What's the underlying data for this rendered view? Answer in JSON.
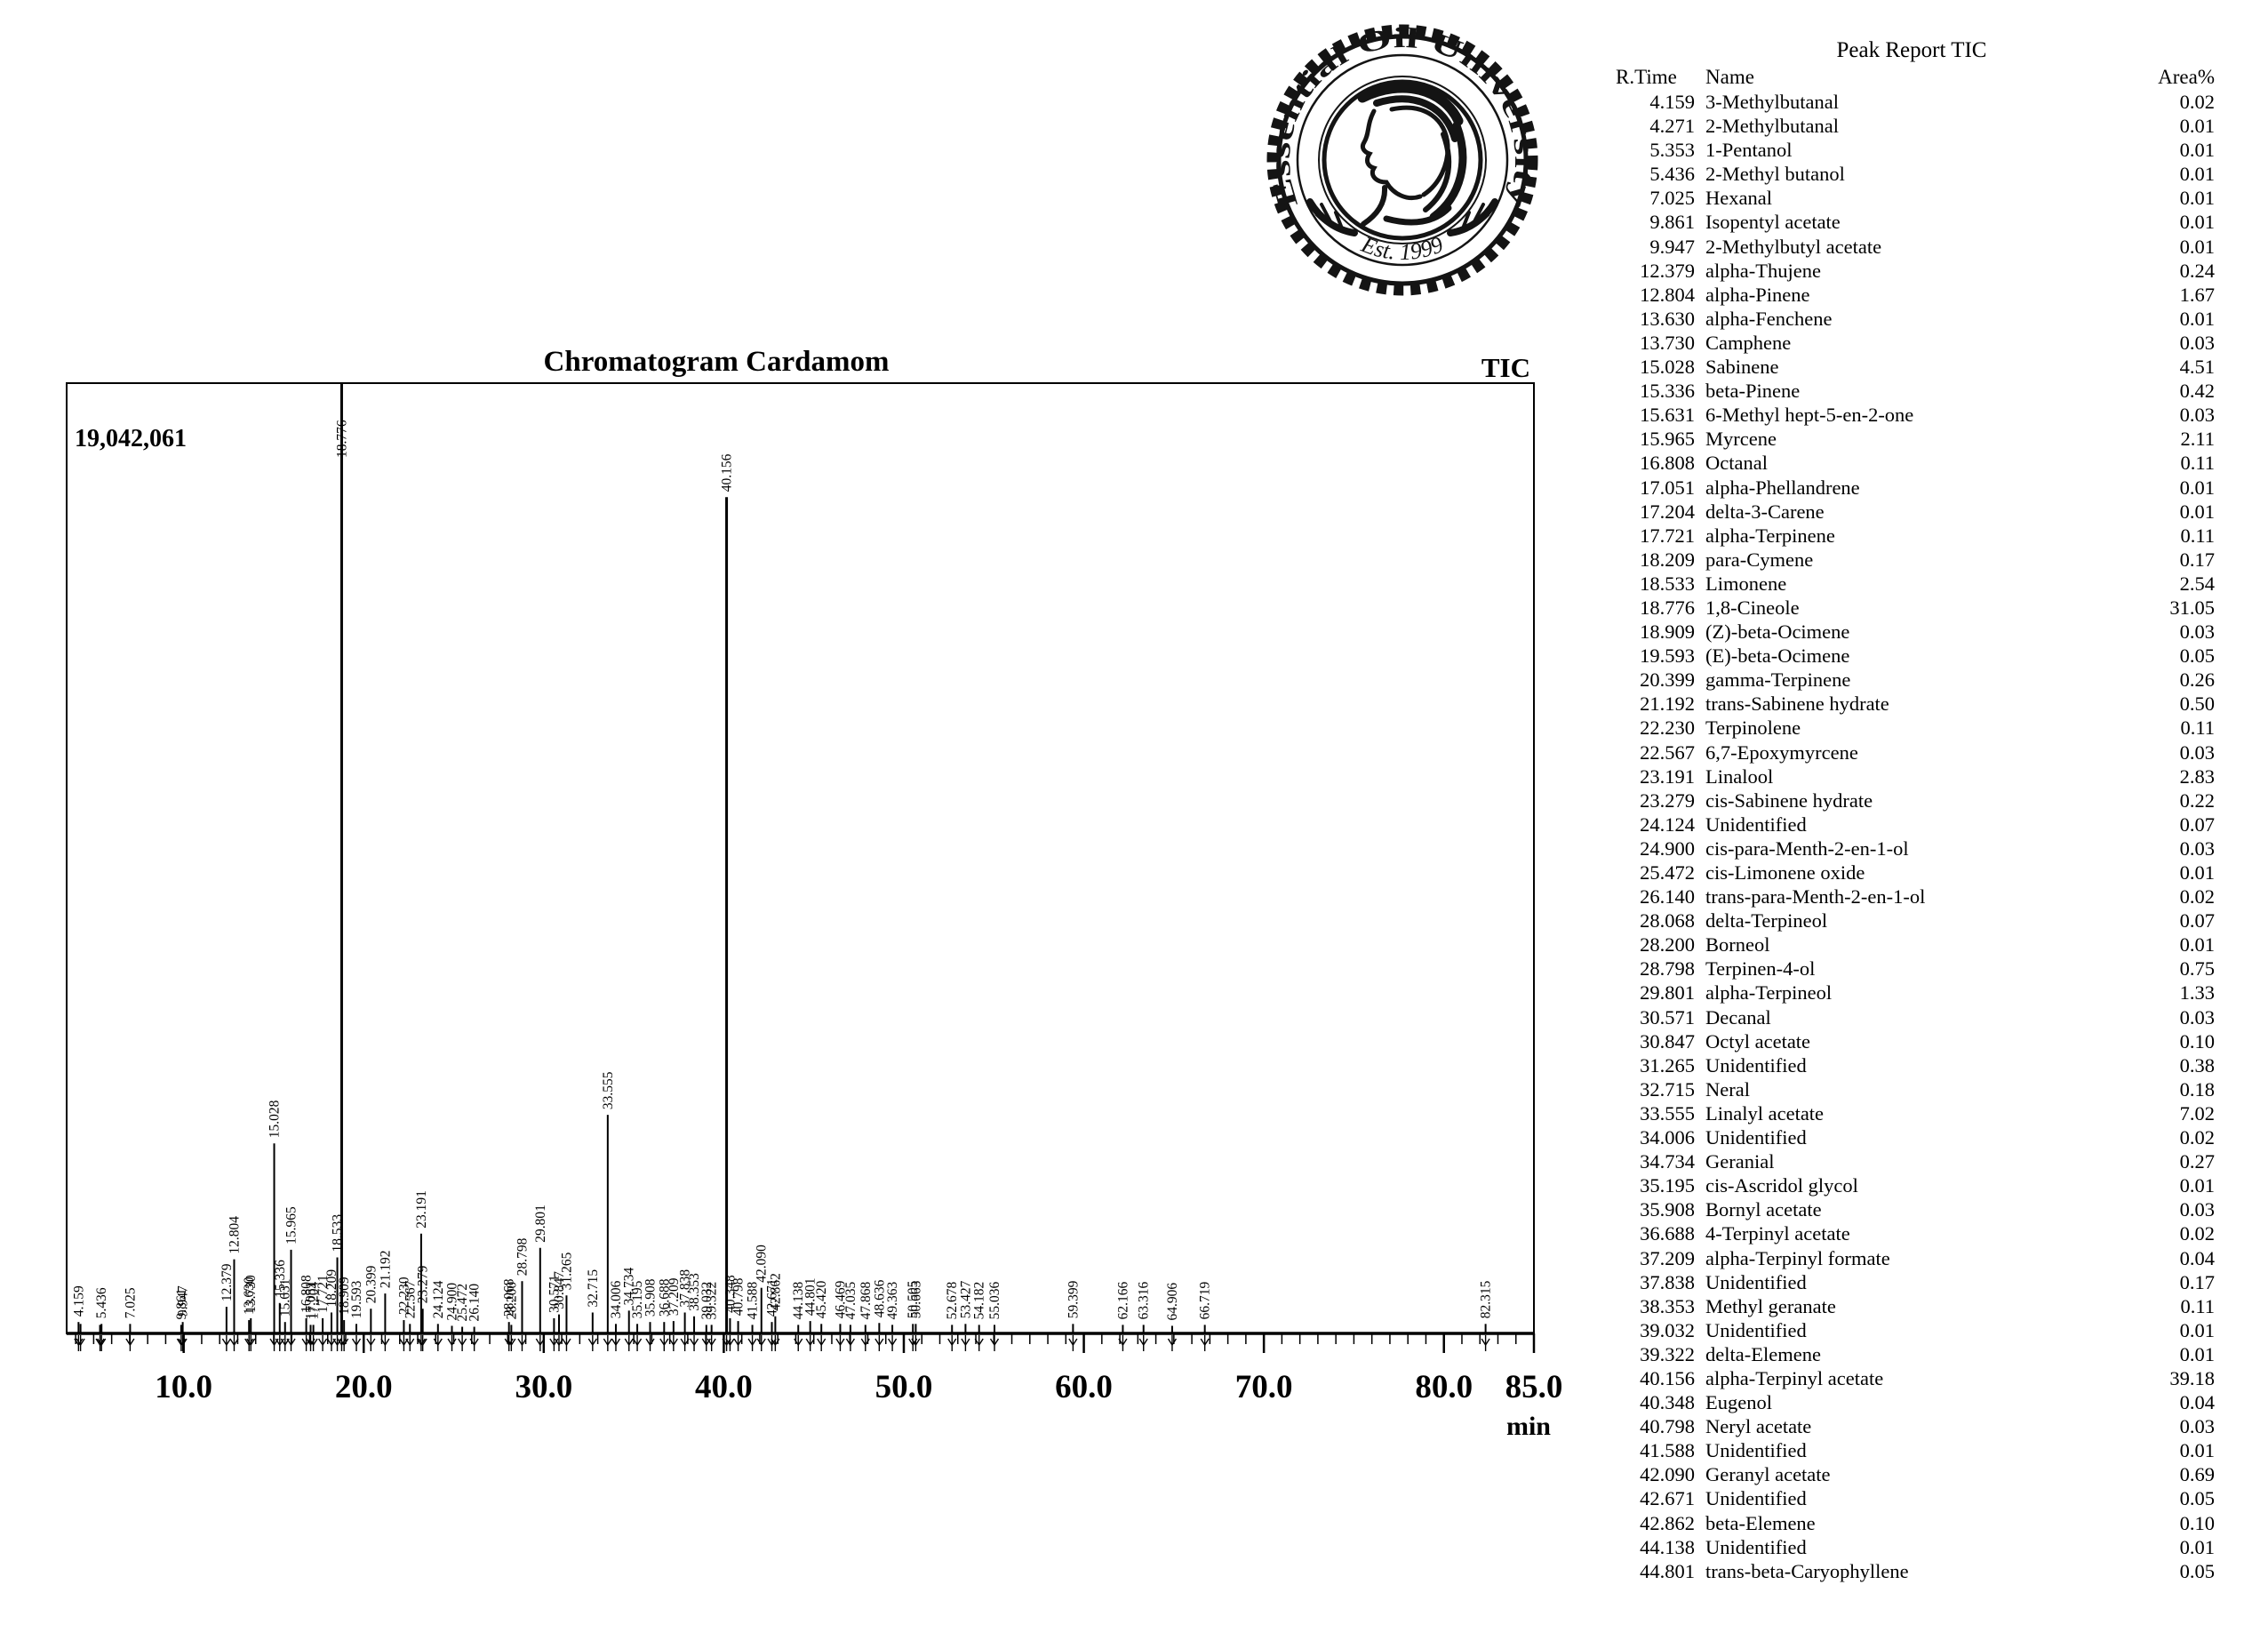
{
  "logo": {
    "top_text": "Essential Oil University",
    "bottom_text": "Est. 1999"
  },
  "chart_data": {
    "type": "line",
    "title": "Chromatogram Cardamom",
    "detector_label": "TIC",
    "y_max_intensity_label": "19,042,061",
    "xlabel": "min",
    "x_range": [
      3.5,
      85
    ],
    "x_major_ticks": [
      10,
      20,
      30,
      40,
      50,
      60,
      70,
      80,
      85
    ],
    "x_major_tick_labels": [
      "10.0",
      "20.0",
      "30.0",
      "40.0",
      "50.0",
      "60.0",
      "70.0",
      "80.0",
      "85.0"
    ],
    "grid": false,
    "peak_height_unit": "percent_of_plot_height",
    "peaks": [
      [
        4.159,
        1.2,
        1
      ],
      [
        4.271,
        1.0,
        0
      ],
      [
        5.353,
        0.9,
        0
      ],
      [
        5.436,
        1.0,
        1
      ],
      [
        7.025,
        1.0,
        1
      ],
      [
        9.861,
        0.9,
        1
      ],
      [
        9.947,
        1.2,
        1
      ],
      [
        12.379,
        2.8,
        1
      ],
      [
        12.804,
        7.8,
        1
      ],
      [
        13.63,
        1.4,
        1
      ],
      [
        13.73,
        1.6,
        1
      ],
      [
        15.028,
        20,
        1
      ],
      [
        15.336,
        3.2,
        1
      ],
      [
        15.631,
        1.2,
        1
      ],
      [
        15.965,
        8.8,
        1
      ],
      [
        16.808,
        1.6,
        1
      ],
      [
        17.051,
        0.9,
        1
      ],
      [
        17.204,
        0.9,
        1
      ],
      [
        17.721,
        1.6,
        1
      ],
      [
        18.209,
        2.2,
        1
      ],
      [
        18.533,
        8.0,
        1
      ],
      [
        18.776,
        100,
        1
      ],
      [
        18.909,
        1.4,
        1
      ],
      [
        19.593,
        1.0,
        1
      ],
      [
        20.399,
        2.6,
        1
      ],
      [
        21.192,
        4.2,
        1
      ],
      [
        22.23,
        1.4,
        1
      ],
      [
        22.567,
        1.0,
        1
      ],
      [
        23.191,
        10.5,
        1
      ],
      [
        23.279,
        2.6,
        1
      ],
      [
        24.124,
        1.0,
        1
      ],
      [
        24.9,
        0.8,
        1
      ],
      [
        25.472,
        0.7,
        1
      ],
      [
        26.14,
        0.7,
        1
      ],
      [
        28.068,
        1.2,
        1
      ],
      [
        28.2,
        0.9,
        1
      ],
      [
        28.798,
        5.5,
        1
      ],
      [
        29.801,
        9.0,
        1
      ],
      [
        30.571,
        1.6,
        1
      ],
      [
        30.847,
        2.0,
        1
      ],
      [
        31.265,
        4.0,
        1
      ],
      [
        32.715,
        2.2,
        1
      ],
      [
        33.555,
        23,
        1
      ],
      [
        34.006,
        1.0,
        1
      ],
      [
        34.734,
        2.4,
        1
      ],
      [
        35.195,
        1.0,
        1
      ],
      [
        35.908,
        1.2,
        1
      ],
      [
        36.688,
        1.2,
        1
      ],
      [
        37.209,
        1.3,
        1
      ],
      [
        37.838,
        2.2,
        1
      ],
      [
        38.353,
        1.8,
        1
      ],
      [
        39.032,
        0.9,
        1
      ],
      [
        39.322,
        0.9,
        1
      ],
      [
        40.156,
        88,
        1
      ],
      [
        40.348,
        1.6,
        1
      ],
      [
        40.798,
        1.3,
        1
      ],
      [
        41.588,
        0.9,
        1
      ],
      [
        42.09,
        4.8,
        1
      ],
      [
        42.671,
        1.2,
        1
      ],
      [
        42.862,
        1.8,
        1
      ],
      [
        44.138,
        0.9,
        1
      ],
      [
        44.801,
        1.3,
        1
      ],
      [
        45.42,
        1.0,
        1
      ],
      [
        46.469,
        1.0,
        1
      ],
      [
        47.035,
        0.9,
        1
      ],
      [
        47.868,
        0.9,
        1
      ],
      [
        48.636,
        1.1,
        1
      ],
      [
        49.363,
        0.9,
        1
      ],
      [
        50.505,
        1.0,
        1
      ],
      [
        50.663,
        1.0,
        1
      ],
      [
        52.678,
        0.9,
        1
      ],
      [
        53.427,
        1.0,
        1
      ],
      [
        54.182,
        0.9,
        1
      ],
      [
        55.036,
        0.9,
        1
      ],
      [
        59.399,
        1.0,
        1
      ],
      [
        62.166,
        0.9,
        1
      ],
      [
        63.316,
        0.9,
        1
      ],
      [
        64.906,
        0.8,
        1
      ],
      [
        66.719,
        0.9,
        1
      ],
      [
        82.315,
        1.0,
        1
      ]
    ]
  },
  "peak_report": {
    "title": "Peak Report TIC",
    "columns": [
      "R.Time",
      "Name",
      "Area%"
    ],
    "rows": [
      [
        "4.159",
        "3-Methylbutanal",
        "0.02"
      ],
      [
        "4.271",
        "2-Methylbutanal",
        "0.01"
      ],
      [
        "5.353",
        "1-Pentanol",
        "0.01"
      ],
      [
        "5.436",
        "2-Methyl butanol",
        "0.01"
      ],
      [
        "7.025",
        "Hexanal",
        "0.01"
      ],
      [
        "9.861",
        "Isopentyl acetate",
        "0.01"
      ],
      [
        "9.947",
        "2-Methylbutyl acetate",
        "0.01"
      ],
      [
        "12.379",
        "alpha-Thujene",
        "0.24"
      ],
      [
        "12.804",
        "alpha-Pinene",
        "1.67"
      ],
      [
        "13.630",
        "alpha-Fenchene",
        "0.01"
      ],
      [
        "13.730",
        "Camphene",
        "0.03"
      ],
      [
        "15.028",
        "Sabinene",
        "4.51"
      ],
      [
        "15.336",
        "beta-Pinene",
        "0.42"
      ],
      [
        "15.631",
        "6-Methyl hept-5-en-2-one",
        "0.03"
      ],
      [
        "15.965",
        "Myrcene",
        "2.11"
      ],
      [
        "16.808",
        "Octanal",
        "0.11"
      ],
      [
        "17.051",
        "alpha-Phellandrene",
        "0.01"
      ],
      [
        "17.204",
        "delta-3-Carene",
        "0.01"
      ],
      [
        "17.721",
        "alpha-Terpinene",
        "0.11"
      ],
      [
        "18.209",
        "para-Cymene",
        "0.17"
      ],
      [
        "18.533",
        "Limonene",
        "2.54"
      ],
      [
        "18.776",
        "1,8-Cineole",
        "31.05"
      ],
      [
        "18.909",
        "(Z)-beta-Ocimene",
        "0.03"
      ],
      [
        "19.593",
        "(E)-beta-Ocimene",
        "0.05"
      ],
      [
        "20.399",
        "gamma-Terpinene",
        "0.26"
      ],
      [
        "21.192",
        "trans-Sabinene hydrate",
        "0.50"
      ],
      [
        "22.230",
        "Terpinolene",
        "0.11"
      ],
      [
        "22.567",
        "6,7-Epoxymyrcene",
        "0.03"
      ],
      [
        "23.191",
        "Linalool",
        "2.83"
      ],
      [
        "23.279",
        "cis-Sabinene hydrate",
        "0.22"
      ],
      [
        "24.124",
        "Unidentified",
        "0.07"
      ],
      [
        "24.900",
        "cis-para-Menth-2-en-1-ol",
        "0.03"
      ],
      [
        "25.472",
        "cis-Limonene oxide",
        "0.01"
      ],
      [
        "26.140",
        "trans-para-Menth-2-en-1-ol",
        "0.02"
      ],
      [
        "28.068",
        "delta-Terpineol",
        "0.07"
      ],
      [
        "28.200",
        "Borneol",
        "0.01"
      ],
      [
        "28.798",
        "Terpinen-4-ol",
        "0.75"
      ],
      [
        "29.801",
        "alpha-Terpineol",
        "1.33"
      ],
      [
        "30.571",
        "Decanal",
        "0.03"
      ],
      [
        "30.847",
        "Octyl acetate",
        "0.10"
      ],
      [
        "31.265",
        "Unidentified",
        "0.38"
      ],
      [
        "32.715",
        "Neral",
        "0.18"
      ],
      [
        "33.555",
        "Linalyl acetate",
        "7.02"
      ],
      [
        "34.006",
        "Unidentified",
        "0.02"
      ],
      [
        "34.734",
        "Geranial",
        "0.27"
      ],
      [
        "35.195",
        "cis-Ascridol glycol",
        "0.01"
      ],
      [
        "35.908",
        "Bornyl acetate",
        "0.03"
      ],
      [
        "36.688",
        "4-Terpinyl acetate",
        "0.02"
      ],
      [
        "37.209",
        "alpha-Terpinyl formate",
        "0.04"
      ],
      [
        "37.838",
        "Unidentified",
        "0.17"
      ],
      [
        "38.353",
        "Methyl geranate",
        "0.11"
      ],
      [
        "39.032",
        "Unidentified",
        "0.01"
      ],
      [
        "39.322",
        "delta-Elemene",
        "0.01"
      ],
      [
        "40.156",
        "alpha-Terpinyl acetate",
        "39.18"
      ],
      [
        "40.348",
        "Eugenol",
        "0.04"
      ],
      [
        "40.798",
        "Neryl acetate",
        "0.03"
      ],
      [
        "41.588",
        "Unidentified",
        "0.01"
      ],
      [
        "42.090",
        "Geranyl acetate",
        "0.69"
      ],
      [
        "42.671",
        "Unidentified",
        "0.05"
      ],
      [
        "42.862",
        "beta-Elemene",
        "0.10"
      ],
      [
        "44.138",
        "Unidentified",
        "0.01"
      ],
      [
        "44.801",
        "trans-beta-Caryophyllene",
        "0.05"
      ]
    ]
  }
}
